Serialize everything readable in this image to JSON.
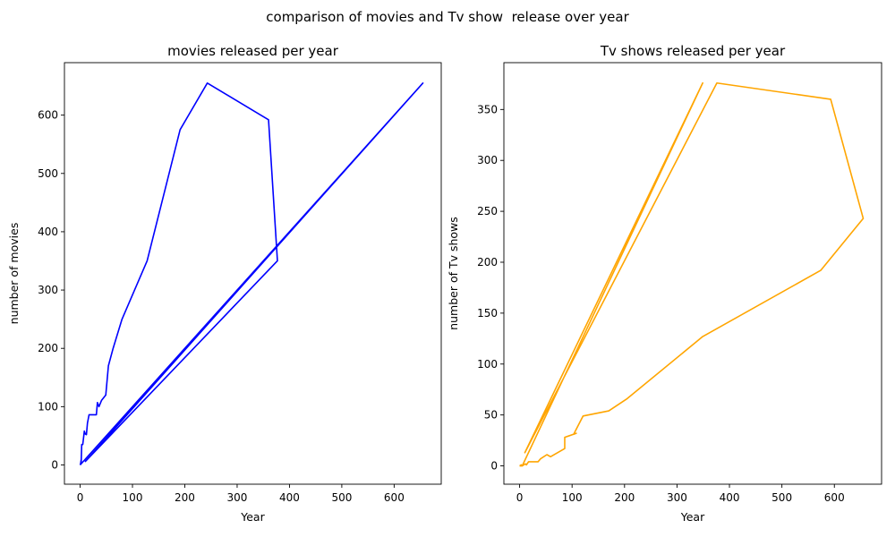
{
  "figure": {
    "suptitle": "comparison of movies and Tv show  release over year"
  },
  "chart_data": [
    {
      "type": "line",
      "title": "movies released per year",
      "xlabel": "Year",
      "ylabel": "number of movies",
      "xlim": [
        -30,
        690
      ],
      "ylim": [
        -33,
        690
      ],
      "xticks": [
        0,
        100,
        200,
        300,
        400,
        500,
        600
      ],
      "yticks": [
        0,
        100,
        200,
        300,
        400,
        500,
        600
      ],
      "grid": false,
      "series": [
        {
          "color": "#0000ff",
          "x": [
            0,
            1,
            2,
            2,
            3,
            5,
            8,
            10,
            12,
            14,
            17,
            21,
            26,
            31,
            33,
            36,
            41,
            49,
            54,
            63,
            80,
            128,
            191,
            243,
            360,
            377,
            10,
            655,
            0
          ],
          "y": [
            0,
            3,
            9,
            4,
            35,
            35,
            58,
            53,
            52,
            72,
            86,
            86,
            86,
            86,
            107,
            100,
            111,
            120,
            170,
            200,
            250,
            350,
            575,
            655,
            592,
            350,
            6,
            655,
            0
          ]
        }
      ]
    },
    {
      "type": "line",
      "title": "Tv shows released per year",
      "xlabel": "Year",
      "ylabel": "number of Tv shows",
      "xlim": [
        -30,
        690
      ],
      "ylim": [
        -18,
        396
      ],
      "xticks": [
        0,
        100,
        200,
        300,
        400,
        500,
        600
      ],
      "yticks": [
        0,
        50,
        100,
        150,
        200,
        250,
        300,
        350
      ],
      "grid": false,
      "series": [
        {
          "color": "#ffa500",
          "x": [
            0,
            3,
            5,
            8,
            11,
            13,
            17,
            21,
            29,
            35,
            40,
            52,
            59,
            86,
            86,
            108,
            103,
            121,
            170,
            205,
            349,
            574,
            655,
            593,
            376,
            10,
            349,
            5,
            0
          ],
          "y": [
            0,
            1,
            0,
            1,
            2,
            1,
            4,
            4,
            4,
            4,
            7,
            11,
            9,
            17,
            28,
            32,
            31,
            49,
            54,
            66,
            127,
            192,
            243,
            360,
            376,
            13,
            376,
            0,
            0
          ]
        }
      ]
    }
  ]
}
